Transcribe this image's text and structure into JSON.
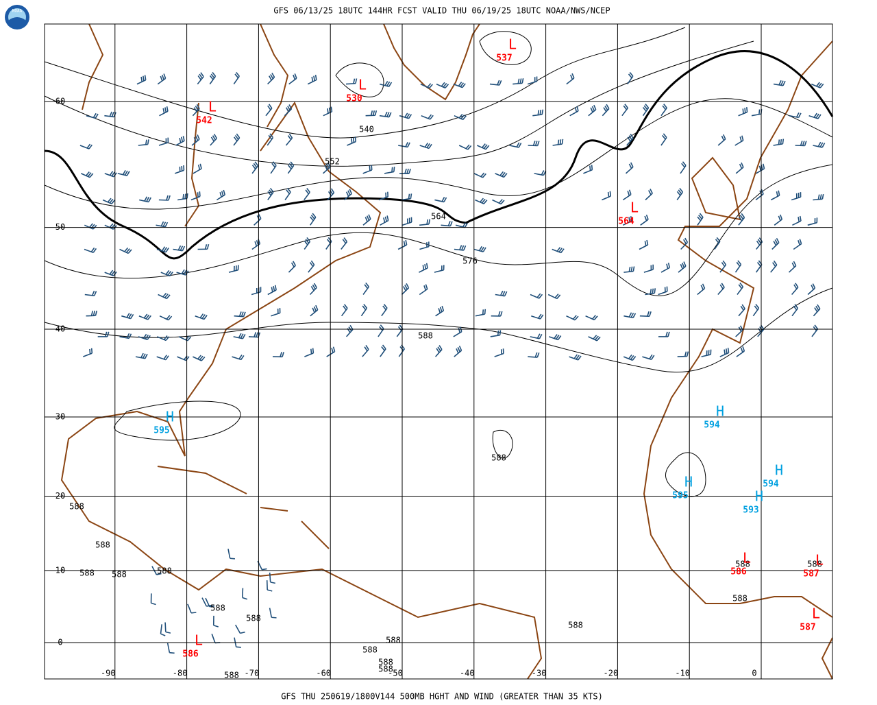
{
  "header": {
    "logo": "NOAA",
    "title": "GFS 06/13/25 18UTC 144HR FCST VALID THU 06/19/25 18UTC NOAA/NWS/NCEP"
  },
  "footer": {
    "title": "GFS THU 250619/1800V144 500MB HGHT AND WIND (GREATER THAN 35 KTS)"
  },
  "map": {
    "lat_ticks": [
      60,
      50,
      40,
      30,
      20,
      10,
      0
    ],
    "lon_ticks": [
      -90,
      -80,
      -70,
      -60,
      -50,
      -40,
      -30,
      -20,
      -10,
      0
    ],
    "centers": [
      {
        "letter": "L",
        "value": "542"
      },
      {
        "letter": "L",
        "value": "537"
      },
      {
        "letter": "L",
        "value": "530"
      },
      {
        "letter": "L",
        "value": "564"
      },
      {
        "letter": "H",
        "value": "595"
      },
      {
        "letter": "H",
        "value": "594"
      },
      {
        "letter": "H",
        "value": "595"
      },
      {
        "letter": "H",
        "value": "594"
      },
      {
        "letter": "H",
        "value": "593"
      },
      {
        "letter": "L",
        "value": "586"
      },
      {
        "letter": "L",
        "value": "587"
      },
      {
        "letter": "L",
        "value": "587"
      },
      {
        "letter": "L",
        "value": "586"
      }
    ],
    "contour_labels": [
      "540",
      "552",
      "564",
      "576",
      "588",
      "588",
      "588",
      "588",
      "588",
      "588",
      "588",
      "588",
      "588",
      "588",
      "588",
      "588",
      "588",
      "588",
      "588",
      "588",
      "588",
      "588"
    ]
  }
}
